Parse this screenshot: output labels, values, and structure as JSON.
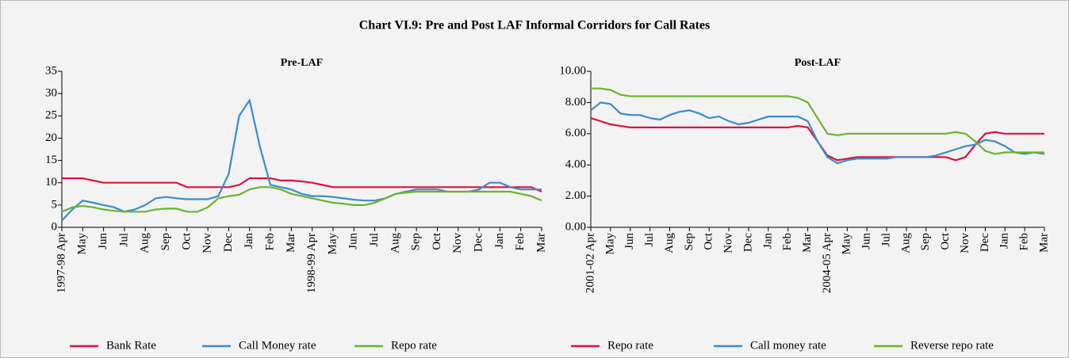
{
  "title": "Chart VI.9: Pre and Post LAF Informal Corridors for Call Rates",
  "chart_data": [
    {
      "type": "line",
      "title": "Pre-LAF",
      "categories": [
        "1997-98 Apr",
        null,
        "May",
        null,
        "Jun",
        null,
        "Jul",
        null,
        "Aug",
        null,
        "Sep",
        null,
        "Oct",
        null,
        "Nov",
        null,
        "Dec",
        null,
        "Jan",
        null,
        "Feb",
        null,
        "Mar",
        null,
        "1998-99 Apr",
        null,
        "May",
        null,
        "Jun",
        null,
        "Jul",
        null,
        "Aug",
        null,
        "Sep",
        null,
        "Oct",
        null,
        "Nov",
        null,
        "Dec",
        null,
        "Jan",
        null,
        "Feb",
        null,
        "Mar"
      ],
      "series": [
        {
          "name": "Bank Rate",
          "color": "#e0103f",
          "values": [
            11,
            11,
            11,
            10.5,
            10,
            10,
            10,
            10,
            10,
            10,
            10,
            10,
            9,
            9,
            9,
            9,
            9,
            9.5,
            11,
            11,
            11,
            10.5,
            10.5,
            10.3,
            10,
            9.5,
            9,
            9,
            9,
            9,
            9,
            9,
            9,
            9,
            9,
            9,
            9,
            9,
            9,
            9,
            9,
            9,
            9,
            9,
            9,
            9,
            8
          ]
        },
        {
          "name": "Call Money rate",
          "color": "#3a8ccc",
          "values": [
            1.5,
            4,
            6,
            5.5,
            5,
            4.5,
            3.5,
            4,
            5,
            6.5,
            6.8,
            6.5,
            6.3,
            6.3,
            6.3,
            7,
            12,
            25,
            28.5,
            18,
            9.5,
            9,
            8.5,
            7.5,
            7,
            7,
            6.8,
            6.5,
            6.2,
            6,
            6,
            6.5,
            7.5,
            8,
            8.5,
            8.5,
            8.5,
            8,
            8,
            8,
            8.5,
            10,
            10,
            9,
            8.5,
            8.5,
            8.5
          ]
        },
        {
          "name": "Repo rate",
          "color": "#6ab42d",
          "values": [
            3.5,
            4.5,
            4.8,
            4.5,
            4,
            3.7,
            3.5,
            3.5,
            3.5,
            4,
            4.2,
            4.2,
            3.5,
            3.5,
            4.5,
            6.5,
            7,
            7.3,
            8.5,
            9,
            9,
            8.5,
            7.5,
            7,
            6.5,
            6,
            5.5,
            5.3,
            5,
            5,
            5.5,
            6.5,
            7.5,
            7.8,
            8,
            8,
            8,
            8,
            8,
            8,
            8,
            8,
            8,
            8,
            7.5,
            7,
            6
          ]
        }
      ],
      "ylim": [
        0,
        35
      ],
      "yticks": [
        0,
        5,
        10,
        15,
        20,
        25,
        30,
        35
      ],
      "legend": "bottom"
    },
    {
      "type": "line",
      "title": "Post-LAF",
      "categories": [
        "2001-02 Apr",
        null,
        "May",
        null,
        "Jun",
        null,
        "Jul",
        null,
        "Aug",
        null,
        "Sep",
        null,
        "Oct",
        null,
        "Nov",
        null,
        "Dec",
        null,
        "Jan",
        null,
        "Feb",
        null,
        "Mar",
        null,
        "2004-05 Apr",
        null,
        "May",
        null,
        "Jun",
        null,
        "Jul",
        null,
        "Aug",
        null,
        "Sep",
        null,
        "Oct",
        null,
        "Nov",
        null,
        "Dec",
        null,
        "Jan",
        null,
        "Feb",
        null,
        "Mar"
      ],
      "series": [
        {
          "name": "Repo rate",
          "color": "#e0103f",
          "values": [
            7,
            6.8,
            6.6,
            6.5,
            6.4,
            6.4,
            6.4,
            6.4,
            6.4,
            6.4,
            6.4,
            6.4,
            6.4,
            6.4,
            6.4,
            6.4,
            6.4,
            6.4,
            6.4,
            6.4,
            6.4,
            6.5,
            6.4,
            5.5,
            4.6,
            4.3,
            4.4,
            4.5,
            4.5,
            4.5,
            4.5,
            4.5,
            4.5,
            4.5,
            4.5,
            4.5,
            4.5,
            4.3,
            4.5,
            5.3,
            6,
            6.1,
            6,
            6,
            6,
            6,
            6
          ]
        },
        {
          "name": "Call money rate",
          "color": "#3a8ccc",
          "values": [
            7.5,
            8,
            7.9,
            7.3,
            7.2,
            7.2,
            7,
            6.9,
            7.2,
            7.4,
            7.5,
            7.3,
            7,
            7.1,
            6.8,
            6.6,
            6.7,
            6.9,
            7.1,
            7.1,
            7.1,
            7.1,
            6.8,
            5.5,
            4.5,
            4.1,
            4.3,
            4.4,
            4.4,
            4.4,
            4.4,
            4.5,
            4.5,
            4.5,
            4.5,
            4.6,
            4.8,
            5,
            5.2,
            5.3,
            5.6,
            5.5,
            5.2,
            4.8,
            4.7,
            4.8,
            4.7
          ]
        },
        {
          "name": "Reverse repo rate",
          "color": "#6ab42d",
          "values": [
            8.9,
            8.9,
            8.8,
            8.5,
            8.4,
            8.4,
            8.4,
            8.4,
            8.4,
            8.4,
            8.4,
            8.4,
            8.4,
            8.4,
            8.4,
            8.4,
            8.4,
            8.4,
            8.4,
            8.4,
            8.4,
            8.3,
            8,
            7,
            6,
            5.9,
            6,
            6,
            6,
            6,
            6,
            6,
            6,
            6,
            6,
            6,
            6,
            6.1,
            6,
            5.5,
            4.9,
            4.7,
            4.8,
            4.8,
            4.8,
            4.8,
            4.8
          ]
        }
      ],
      "ylim": [
        0,
        10
      ],
      "yticks": [
        {
          "value": 0,
          "label": "0.00"
        },
        {
          "value": 2,
          "label": "2.00"
        },
        {
          "value": 4,
          "label": "4.00"
        },
        {
          "value": 6,
          "label": "6.00"
        },
        {
          "value": 8,
          "label": "8.00"
        },
        {
          "value": 10,
          "label": "10.00"
        }
      ],
      "legend": "bottom"
    }
  ]
}
